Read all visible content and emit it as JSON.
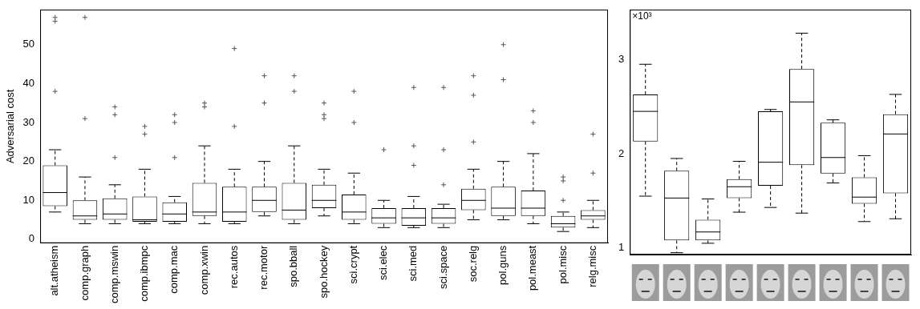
{
  "chart_data": [
    {
      "type": "box",
      "y_label": "Adversarial cost",
      "categories": [
        "alt.atheism",
        "comp.graph",
        "comp.mswin",
        "comp.ibmpc",
        "comp.mac",
        "comp.xwin",
        "rec.autos",
        "rec.motor",
        "spo.bball",
        "spo.hockey",
        "sci.crypt",
        "sci.elec",
        "sci.med",
        "sci.space",
        "soc.relg",
        "pol.guns",
        "pol.meast",
        "pol.misc",
        "relg.misc"
      ],
      "boxes": [
        {
          "whisker_low": 7,
          "q1": 8.5,
          "median": 12,
          "q3": 19,
          "whisker_high": 23,
          "outliers": [
            38,
            56,
            57
          ]
        },
        {
          "whisker_low": 4,
          "q1": 5,
          "median": 6,
          "q3": 10,
          "whisker_high": 16,
          "outliers": [
            31,
            57
          ]
        },
        {
          "whisker_low": 4,
          "q1": 5,
          "median": 6.5,
          "q3": 10.5,
          "whisker_high": 14,
          "outliers": [
            21,
            32,
            34
          ]
        },
        {
          "whisker_low": 4,
          "q1": 4.5,
          "median": 5,
          "q3": 11,
          "whisker_high": 18,
          "outliers": [
            27,
            29
          ]
        },
        {
          "whisker_low": 4,
          "q1": 4.5,
          "median": 6.5,
          "q3": 9.5,
          "whisker_high": 11,
          "outliers": [
            21,
            30,
            32
          ]
        },
        {
          "whisker_low": 4,
          "q1": 6,
          "median": 7,
          "q3": 14.5,
          "whisker_high": 24,
          "outliers": [
            34,
            35
          ]
        },
        {
          "whisker_low": 4,
          "q1": 4.5,
          "median": 7,
          "q3": 13.5,
          "whisker_high": 18,
          "outliers": [
            29,
            49
          ]
        },
        {
          "whisker_low": 6,
          "q1": 7,
          "median": 10,
          "q3": 13.5,
          "whisker_high": 20,
          "outliers": [
            35,
            42
          ]
        },
        {
          "whisker_low": 4,
          "q1": 5,
          "median": 7.5,
          "q3": 14.5,
          "whisker_high": 24,
          "outliers": [
            38,
            42
          ]
        },
        {
          "whisker_low": 6,
          "q1": 8,
          "median": 10,
          "q3": 14,
          "whisker_high": 18,
          "outliers": [
            31,
            32,
            35
          ]
        },
        {
          "whisker_low": 4,
          "q1": 5,
          "median": 7,
          "q3": 11.5,
          "whisker_high": 17,
          "outliers": [
            30,
            38
          ]
        },
        {
          "whisker_low": 3,
          "q1": 4,
          "median": 5.5,
          "q3": 8,
          "whisker_high": 10,
          "outliers": [
            23
          ]
        },
        {
          "whisker_low": 3,
          "q1": 3.5,
          "median": 5.5,
          "q3": 8,
          "whisker_high": 11,
          "outliers": [
            19,
            24,
            39
          ]
        },
        {
          "whisker_low": 3,
          "q1": 4,
          "median": 5.5,
          "q3": 8,
          "whisker_high": 9,
          "outliers": [
            14,
            23,
            39
          ]
        },
        {
          "whisker_low": 5,
          "q1": 7.5,
          "median": 10,
          "q3": 13,
          "whisker_high": 18,
          "outliers": [
            25,
            37,
            42
          ]
        },
        {
          "whisker_low": 5,
          "q1": 6,
          "median": 8,
          "q3": 13.5,
          "whisker_high": 20,
          "outliers": [
            41,
            50
          ]
        },
        {
          "whisker_low": 4,
          "q1": 6,
          "median": 8,
          "q3": 12.5,
          "whisker_high": 22,
          "outliers": [
            30,
            33
          ]
        },
        {
          "whisker_low": 2,
          "q1": 3,
          "median": 4,
          "q3": 6,
          "whisker_high": 7,
          "outliers": [
            10,
            15,
            16
          ]
        },
        {
          "whisker_low": 3,
          "q1": 5,
          "median": 6,
          "q3": 7.5,
          "whisker_high": 10,
          "outliers": [
            17,
            27
          ]
        }
      ],
      "ylim": [
        -1,
        59
      ],
      "yticks": [
        0,
        10,
        20,
        30,
        40,
        50
      ],
      "grid": false,
      "color": "#000000",
      "line_style": "dashed",
      "marker": "plus"
    },
    {
      "type": "box",
      "annotations": [
        "×10³"
      ],
      "categories": [
        null,
        null,
        null,
        null,
        null,
        null,
        null,
        null,
        null
      ],
      "boxes": [
        {
          "whisker_low": 1.55,
          "q1": 2.13,
          "median": 2.45,
          "q3": 2.63,
          "whisker_high": 2.95,
          "outliers": []
        },
        {
          "whisker_low": 0.95,
          "q1": 1.08,
          "median": 1.53,
          "q3": 1.82,
          "whisker_high": 1.95,
          "outliers": []
        },
        {
          "whisker_low": 1.05,
          "q1": 1.08,
          "median": 1.17,
          "q3": 1.3,
          "whisker_high": 1.52,
          "outliers": []
        },
        {
          "whisker_low": 1.38,
          "q1": 1.53,
          "median": 1.65,
          "q3": 1.73,
          "whisker_high": 1.92,
          "outliers": []
        },
        {
          "whisker_low": 1.43,
          "q1": 1.66,
          "median": 1.91,
          "q3": 2.45,
          "whisker_high": 2.47,
          "outliers": []
        },
        {
          "whisker_low": 1.37,
          "q1": 1.88,
          "median": 2.55,
          "q3": 2.9,
          "whisker_high": 3.28,
          "outliers": []
        },
        {
          "whisker_low": 1.69,
          "q1": 1.79,
          "median": 1.96,
          "q3": 2.33,
          "whisker_high": 2.36,
          "outliers": []
        },
        {
          "whisker_low": 1.28,
          "q1": 1.47,
          "median": 1.54,
          "q3": 1.75,
          "whisker_high": 1.98,
          "outliers": []
        },
        {
          "whisker_low": 1.31,
          "q1": 1.58,
          "median": 2.21,
          "q3": 2.42,
          "whisker_high": 2.63,
          "outliers": []
        }
      ],
      "ylim": [
        0.93,
        3.53
      ],
      "yticks": [
        1,
        2,
        3
      ],
      "grid": false,
      "color": "#000000",
      "line_style": "dashed",
      "tick_labels": "y"
    }
  ]
}
